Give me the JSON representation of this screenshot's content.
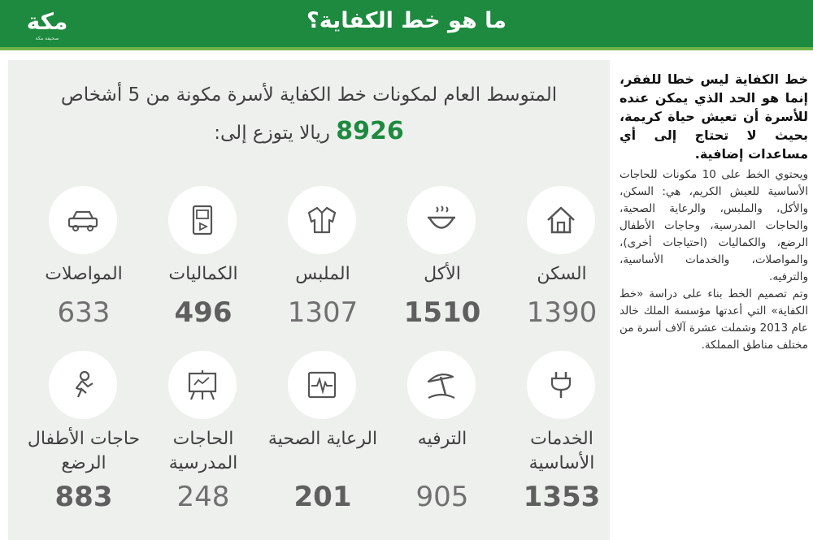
{
  "header": {
    "title": "ما هو خط الكفاية؟",
    "logo_text": "مكة",
    "logo_sub": "صحيفة مكة"
  },
  "main": {
    "intro_line1": "المتوسط العام لمكونات خط الكفاية لأسرة مكونة من 5 أشخاص",
    "total": "8926",
    "intro_line2_rest": "ريالا يتوزع إلى:",
    "items": [
      {
        "label": "السكن",
        "value": "1390",
        "icon": "house-icon"
      },
      {
        "label": "الأكل",
        "value": "1510",
        "icon": "food-bowl-icon"
      },
      {
        "label": "الملبس",
        "value": "1307",
        "icon": "jacket-icon"
      },
      {
        "label": "الكماليات",
        "value": "496",
        "icon": "device-icon"
      },
      {
        "label": "المواصلات",
        "value": "633",
        "icon": "car-icon"
      },
      {
        "label": "الخدمات الأساسية",
        "value": "1353",
        "icon": "plug-icon"
      },
      {
        "label": "الترفيه",
        "value": "905",
        "icon": "beach-umbrella-icon"
      },
      {
        "label": "الرعاية الصحية",
        "value": "201",
        "icon": "heart-monitor-icon"
      },
      {
        "label": "الحاجات المدرسية",
        "value": "248",
        "icon": "easel-board-icon"
      },
      {
        "label": "حاجات الأطفال الرضع",
        "value": "883",
        "icon": "baby-icon"
      }
    ]
  },
  "sidebar": {
    "lead": "خط الكفاية ليس خطا للفقر، إنما هو الحد الذي يمكن عنده للأسرة أن تعيش حياة كريمة، بحيث لا تحتاج إلى أي مساعدات إضافية.",
    "body1": "ويحتوي الخط على 10 مكونات للحاجات الأساسية للعيش الكريم، هي: السكن، والأكل، والملبس، والرعاية الصحية، والحاجات المدرسية، وحاجات الأطفال الرضع، والكماليات (احتياجات أخرى)، والمواصلات، والخدمات الأساسية، والترفيه.",
    "body2": "وتم تصميم الخط بناء على دراسة «خط الكفاية» التي أعدتها مؤسسة الملك خالد عام 2013 وشملت عشرة آلاف أسرة من مختلف مناطق المملكة."
  },
  "colors": {
    "header": "#1d8a3f",
    "accent": "#6fb24a",
    "panel": "#eef0ee",
    "value": "#707070"
  }
}
